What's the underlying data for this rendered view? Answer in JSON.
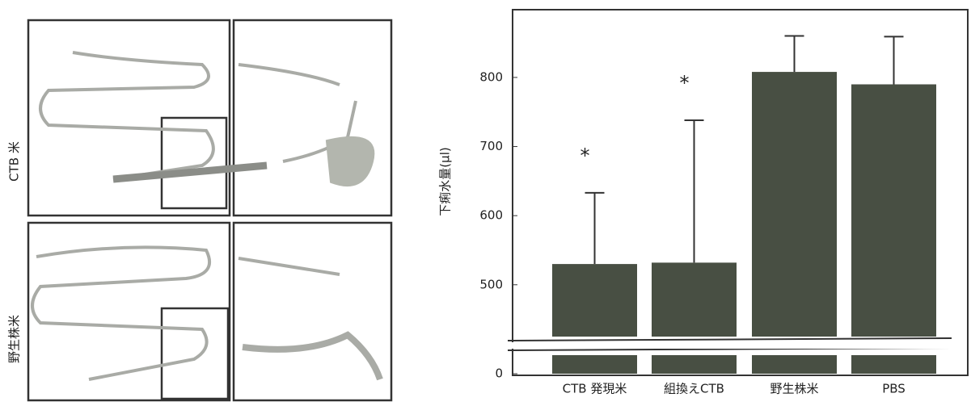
{
  "panels": [
    {
      "label": "CTB 米"
    },
    {
      "label": "野生株米"
    }
  ],
  "chart_data": {
    "type": "bar",
    "y_label": "下痢水量(μl)",
    "categories": [
      "CTB 発現米",
      "組換えCTB",
      "野生株米",
      "PBS"
    ],
    "values": [
      530,
      532,
      808,
      790
    ],
    "errors": [
      103,
      206,
      52,
      69
    ],
    "significance": [
      "*",
      "*",
      null,
      null
    ],
    "color": "#484f43",
    "ylim": [
      0,
      870
    ],
    "axis_break": [
      10,
      425
    ],
    "yticks": [
      0,
      500,
      600,
      700,
      800
    ]
  }
}
